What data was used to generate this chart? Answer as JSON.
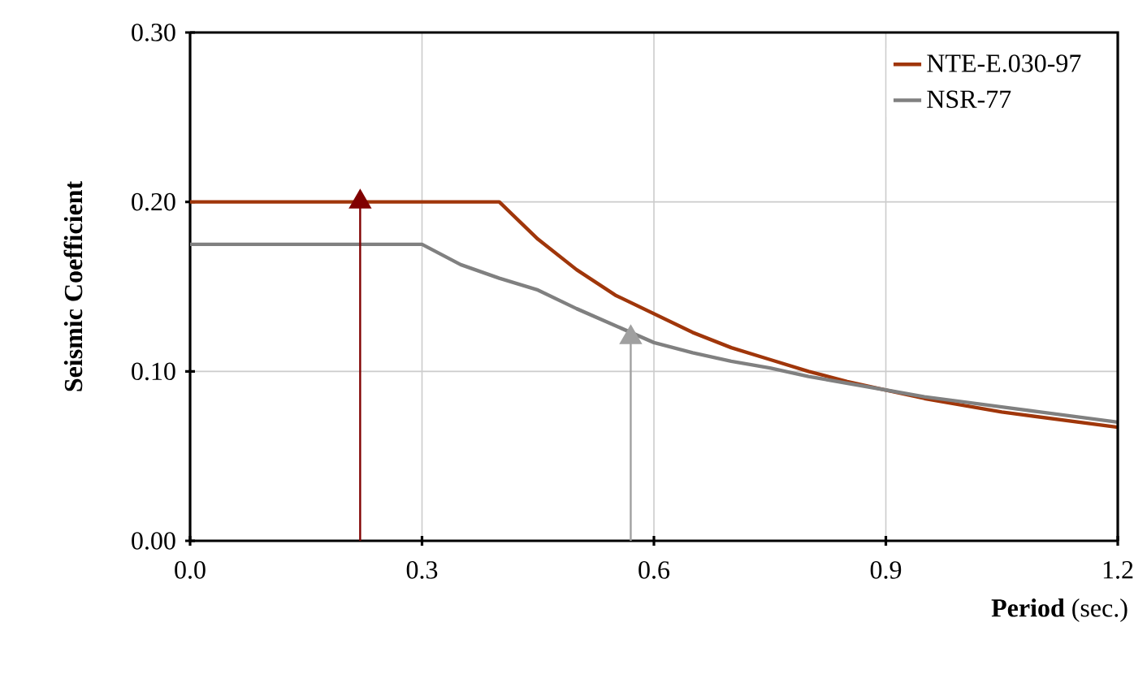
{
  "chart_data": {
    "type": "line",
    "xlabel": "**Period** (sec.)",
    "ylabel": "Seismic Coefficient",
    "series": [
      {
        "name": "NTE-E.030-97",
        "color": "#a0360a",
        "x": [
          0,
          0.4,
          0.45,
          0.5,
          0.55,
          0.6,
          0.65,
          0.7,
          0.75,
          0.8,
          0.85,
          0.9,
          0.95,
          1.0,
          1.05,
          1.1,
          1.15,
          1.2
        ],
        "values": [
          0.2,
          0.2,
          0.178,
          0.16,
          0.145,
          0.134,
          0.123,
          0.114,
          0.107,
          0.1,
          0.094,
          0.089,
          0.084,
          0.08,
          0.076,
          0.073,
          0.07,
          0.067
        ]
      },
      {
        "name": "NSR-77",
        "color": "#808080",
        "x": [
          0,
          0.3,
          0.35,
          0.4,
          0.45,
          0.5,
          0.55,
          0.6,
          0.65,
          0.7,
          0.75,
          0.8,
          0.85,
          0.9,
          0.95,
          1.0,
          1.05,
          1.1,
          1.15,
          1.2
        ],
        "values": [
          0.175,
          0.175,
          0.163,
          0.155,
          0.148,
          0.137,
          0.127,
          0.117,
          0.111,
          0.106,
          0.102,
          0.097,
          0.093,
          0.089,
          0.085,
          0.082,
          0.079,
          0.076,
          0.073,
          0.07
        ]
      },
      {
        "color": "#800000",
        "x": [
          0.22,
          0.22
        ],
        "values": [
          0,
          0.2
        ],
        "marker": "triangle"
      },
      {
        "color": "#a0a0a0",
        "x": [
          0.57,
          0.57
        ],
        "values": [
          0,
          0.12
        ],
        "marker": "triangle"
      }
    ],
    "xlim": [
      0,
      1.2
    ],
    "ylim": [
      0,
      0.3
    ],
    "xticks": [
      {
        "value": 0,
        "label": "0.0"
      },
      {
        "value": 0.3,
        "label": "0.3"
      },
      {
        "value": 0.6,
        "label": "0.6"
      },
      {
        "value": 0.9,
        "label": "0.9"
      },
      {
        "value": 1.2,
        "label": "1.2"
      }
    ],
    "yticks": [
      {
        "value": 0,
        "label": "0.00"
      },
      {
        "value": 0.1,
        "label": "0.10"
      },
      {
        "value": 0.2,
        "label": "0.20"
      },
      {
        "value": 0.3,
        "label": "0.30"
      }
    ],
    "grid": true,
    "legend": "top right"
  }
}
